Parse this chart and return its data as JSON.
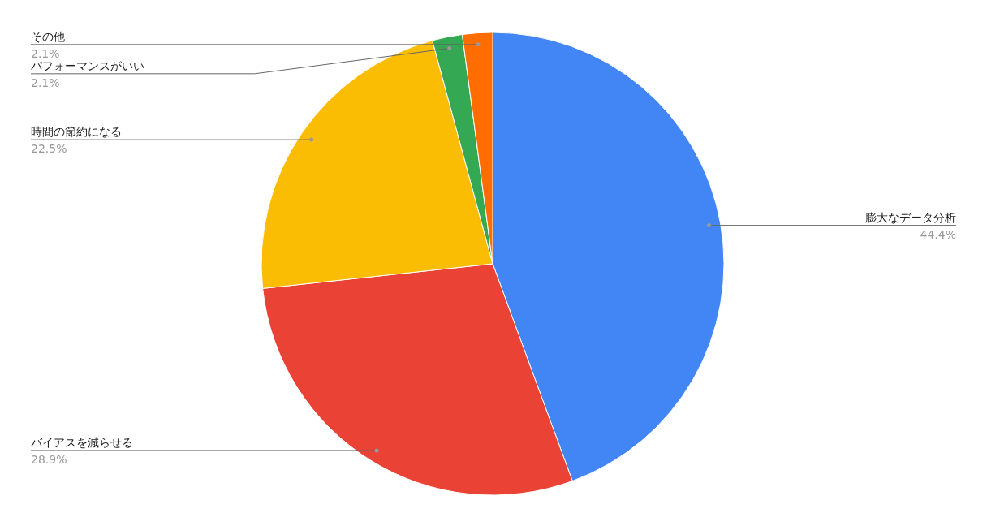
{
  "chart_data": {
    "type": "pie",
    "categories": [
      "膨大なデータ分析",
      "バイアスを減らせる",
      "時間の節約になる",
      "パフォーマンスがいい",
      "その他"
    ],
    "values": [
      44.4,
      28.9,
      22.5,
      2.1,
      2.1
    ],
    "colors": [
      "#4285f4",
      "#ea4335",
      "#fbbc04",
      "#34a853",
      "#ff6d01"
    ],
    "value_labels": [
      "44.4%",
      "28.9%",
      "22.5%",
      "2.1%",
      "2.1%"
    ]
  }
}
